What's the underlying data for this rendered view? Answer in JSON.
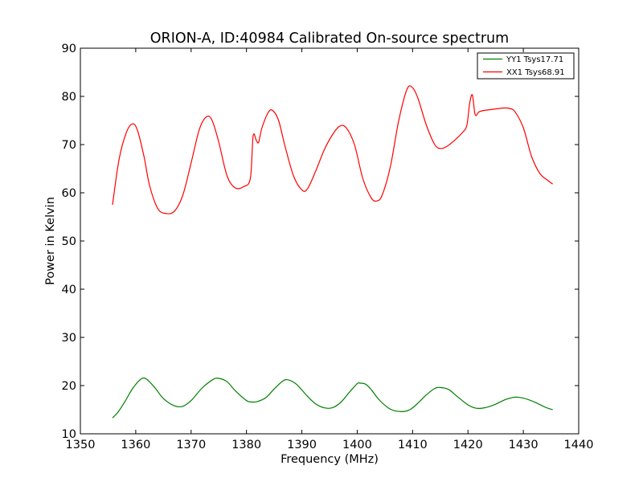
{
  "chart_data": {
    "type": "line",
    "title": "ORION-A, ID:40984 Calibrated On-source spectrum",
    "xlabel": "Frequency (MHz)",
    "ylabel": "Power in Kelvin",
    "xlim": [
      1350,
      1440
    ],
    "ylim": [
      10,
      90
    ],
    "xticks": [
      "1350",
      "1360",
      "1370",
      "1380",
      "1390",
      "1400",
      "1410",
      "1420",
      "1430",
      "1440"
    ],
    "yticks": [
      "10",
      "20",
      "30",
      "40",
      "50",
      "60",
      "70",
      "80",
      "90"
    ],
    "legend_position": "top-right",
    "series": [
      {
        "name": "YY1 Tsys17.71",
        "color": "#008000",
        "x": [
          1355.8,
          1356.8,
          1358,
          1359.5,
          1361,
          1362,
          1363.5,
          1365,
          1367,
          1368.5,
          1370,
          1372,
          1374,
          1375,
          1376.5,
          1378,
          1380,
          1381,
          1382,
          1383.5,
          1385,
          1386.5,
          1387.5,
          1389,
          1391,
          1392.5,
          1394,
          1395.5,
          1397,
          1398.5,
          1400,
          1400.5,
          1401.5,
          1402.5,
          1404,
          1406,
          1408,
          1409.5,
          1411,
          1412.5,
          1414,
          1415,
          1416.5,
          1418,
          1420,
          1421.5,
          1423,
          1424.5,
          1426,
          1427,
          1428.5,
          1430,
          1432,
          1434,
          1435.3
        ],
        "values": [
          13.3,
          14.5,
          16.6,
          19.5,
          21.4,
          21.3,
          19.5,
          17.3,
          15.8,
          15.7,
          16.9,
          19.5,
          21.3,
          21.5,
          20.8,
          18.9,
          16.9,
          16.6,
          16.7,
          17.5,
          19.3,
          20.9,
          21.2,
          20.3,
          17.8,
          16.2,
          15.4,
          15.4,
          16.5,
          18.5,
          20.4,
          20.5,
          20.3,
          19.2,
          17.0,
          15.1,
          14.6,
          15.0,
          16.4,
          18.1,
          19.4,
          19.6,
          19.2,
          17.8,
          16.0,
          15.3,
          15.4,
          15.9,
          16.7,
          17.2,
          17.6,
          17.4,
          16.6,
          15.5,
          15.0
        ]
      },
      {
        "name": "XX1 Tsys68.91",
        "color": "#ff0000",
        "x": [
          1355.8,
          1357,
          1358.3,
          1359.4,
          1360.3,
          1361.5,
          1362.5,
          1364,
          1365.5,
          1367,
          1368.5,
          1370,
          1371.5,
          1372.8,
          1373.8,
          1375,
          1376.5,
          1378,
          1379.5,
          1380.7,
          1381.2,
          1381.8,
          1382.2,
          1382.8,
          1384,
          1384.8,
          1385.8,
          1387,
          1388.5,
          1390,
          1391,
          1392.5,
          1394,
          1395.5,
          1396.8,
          1398,
          1399.5,
          1401,
          1402.5,
          1403.5,
          1404.5,
          1406,
          1407.5,
          1409,
          1410,
          1411,
          1412.5,
          1414,
          1415,
          1416,
          1417.5,
          1419,
          1419.8,
          1420.3,
          1420.8,
          1421.3,
          1422,
          1423,
          1425,
          1426.5,
          1427.5,
          1428.5,
          1430,
          1431.5,
          1433,
          1434.5,
          1435.3
        ],
        "values": [
          57.5,
          67.0,
          72.5,
          74.3,
          73.0,
          67.5,
          61.5,
          56.7,
          55.7,
          56.2,
          59.5,
          66.2,
          73.2,
          75.8,
          75.0,
          70.5,
          63.5,
          61.0,
          61.3,
          63.0,
          71.8,
          70.8,
          70.5,
          73.5,
          76.8,
          77.0,
          75.0,
          69.5,
          63.5,
          60.6,
          60.8,
          64.5,
          68.8,
          72.0,
          73.8,
          73.5,
          70.0,
          63.0,
          59.0,
          58.3,
          59.5,
          65.5,
          75.0,
          81.5,
          81.8,
          79.5,
          74.0,
          70.0,
          69.2,
          69.5,
          70.8,
          72.5,
          74.0,
          78.5,
          80.3,
          76.2,
          76.8,
          77.1,
          77.4,
          77.6,
          77.5,
          76.8,
          73.5,
          67.5,
          64.0,
          62.5,
          61.8
        ]
      }
    ]
  }
}
